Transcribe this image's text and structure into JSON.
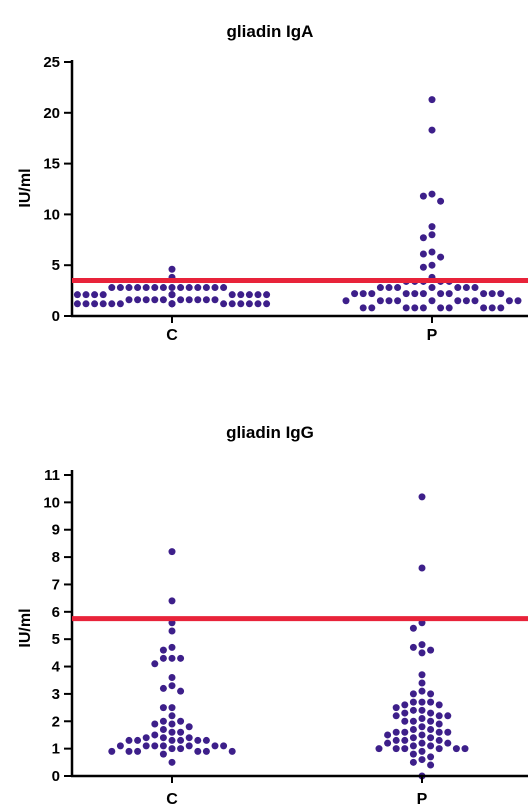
{
  "colors": {
    "dot": "#3d1f8a",
    "threshold": "#e8233a",
    "axis": "#000000"
  },
  "chart_data": [
    {
      "type": "scatter",
      "title": "gliadin IgA",
      "ylabel": "IU/ml",
      "categories": [
        "C",
        "P"
      ],
      "ylim": [
        0,
        25
      ],
      "yticks": [
        "0",
        "5",
        "10",
        "15",
        "20",
        "25"
      ],
      "threshold": 3.5,
      "series": [
        {
          "category": "C",
          "values": [
            4.6,
            3.8,
            2.8,
            2.8,
            2.8,
            2.8,
            2.8,
            2.8,
            2.8,
            2.8,
            2.8,
            2.8,
            2.8,
            2.8,
            2.8,
            2.8,
            2.1,
            2.1,
            2.1,
            2.1,
            2.1,
            2.1,
            2.1,
            2.1,
            2.1,
            2.1,
            2.1,
            2.1,
            1.6,
            1.6,
            1.6,
            1.6,
            1.6,
            1.6,
            1.6,
            1.6,
            1.6,
            1.6,
            1.2,
            1.2,
            1.2,
            1.2,
            1.2,
            1.2,
            1.2,
            1.2,
            1.2,
            1.2,
            1.2,
            1.2,
            1.2,
            1.2,
            1.2,
            1.2
          ]
        },
        {
          "category": "P",
          "values": [
            21.3,
            18.3,
            12.0,
            11.8,
            11.3,
            8.8,
            8.0,
            7.7,
            6.3,
            6.1,
            5.8,
            5.0,
            4.8,
            3.8,
            3.4,
            3.4,
            3.4,
            3.4,
            3.4,
            2.8,
            2.8,
            2.8,
            2.8,
            2.8,
            2.8,
            2.8,
            2.2,
            2.2,
            2.2,
            2.2,
            2.2,
            2.2,
            2.2,
            2.2,
            2.2,
            2.2,
            2.2,
            1.5,
            1.5,
            1.5,
            1.5,
            1.5,
            1.5,
            1.5,
            1.5,
            1.5,
            1.5,
            0.8,
            0.8,
            0.8,
            0.8,
            0.8,
            0.8,
            0.8,
            0.8,
            0.8,
            0.8
          ]
        }
      ]
    },
    {
      "type": "scatter",
      "title": "gliadin IgG",
      "ylabel": "IU/ml",
      "categories": [
        "C",
        "P"
      ],
      "ylim": [
        0,
        11
      ],
      "yticks": [
        "0",
        "1",
        "2",
        "3",
        "4",
        "5",
        "6",
        "7",
        "8",
        "9",
        "10",
        "11"
      ],
      "threshold": 5.75,
      "series": [
        {
          "category": "C",
          "values": [
            8.2,
            6.4,
            5.6,
            5.3,
            4.7,
            4.6,
            4.3,
            4.3,
            4.3,
            4.1,
            3.6,
            3.3,
            3.2,
            3.1,
            2.5,
            2.5,
            2.2,
            2.0,
            2.0,
            1.9,
            1.9,
            1.8,
            1.7,
            1.6,
            1.6,
            1.5,
            1.4,
            1.4,
            1.4,
            1.3,
            1.3,
            1.3,
            1.3,
            1.3,
            1.3,
            1.1,
            1.1,
            1.1,
            1.1,
            1.1,
            1.1,
            1.1,
            1.0,
            1.0,
            0.9,
            0.9,
            0.9,
            0.9,
            0.9,
            0.9,
            0.8,
            0.5
          ]
        },
        {
          "category": "P",
          "values": [
            10.2,
            7.6,
            5.6,
            5.4,
            4.8,
            4.7,
            4.6,
            4.5,
            3.7,
            3.4,
            3.1,
            3.0,
            3.0,
            2.7,
            2.7,
            2.7,
            2.6,
            2.6,
            2.5,
            2.4,
            2.4,
            2.3,
            2.3,
            2.2,
            2.2,
            2.2,
            2.1,
            2.0,
            2.0,
            2.0,
            1.9,
            1.8,
            1.7,
            1.7,
            1.6,
            1.6,
            1.6,
            1.6,
            1.5,
            1.5,
            1.4,
            1.4,
            1.3,
            1.3,
            1.3,
            1.2,
            1.2,
            1.2,
            1.1,
            1.1,
            1.0,
            1.0,
            1.0,
            1.0,
            1.0,
            1.0,
            0.9,
            0.8,
            0.7,
            0.6,
            0.5,
            0.4,
            0.0
          ]
        }
      ]
    }
  ]
}
